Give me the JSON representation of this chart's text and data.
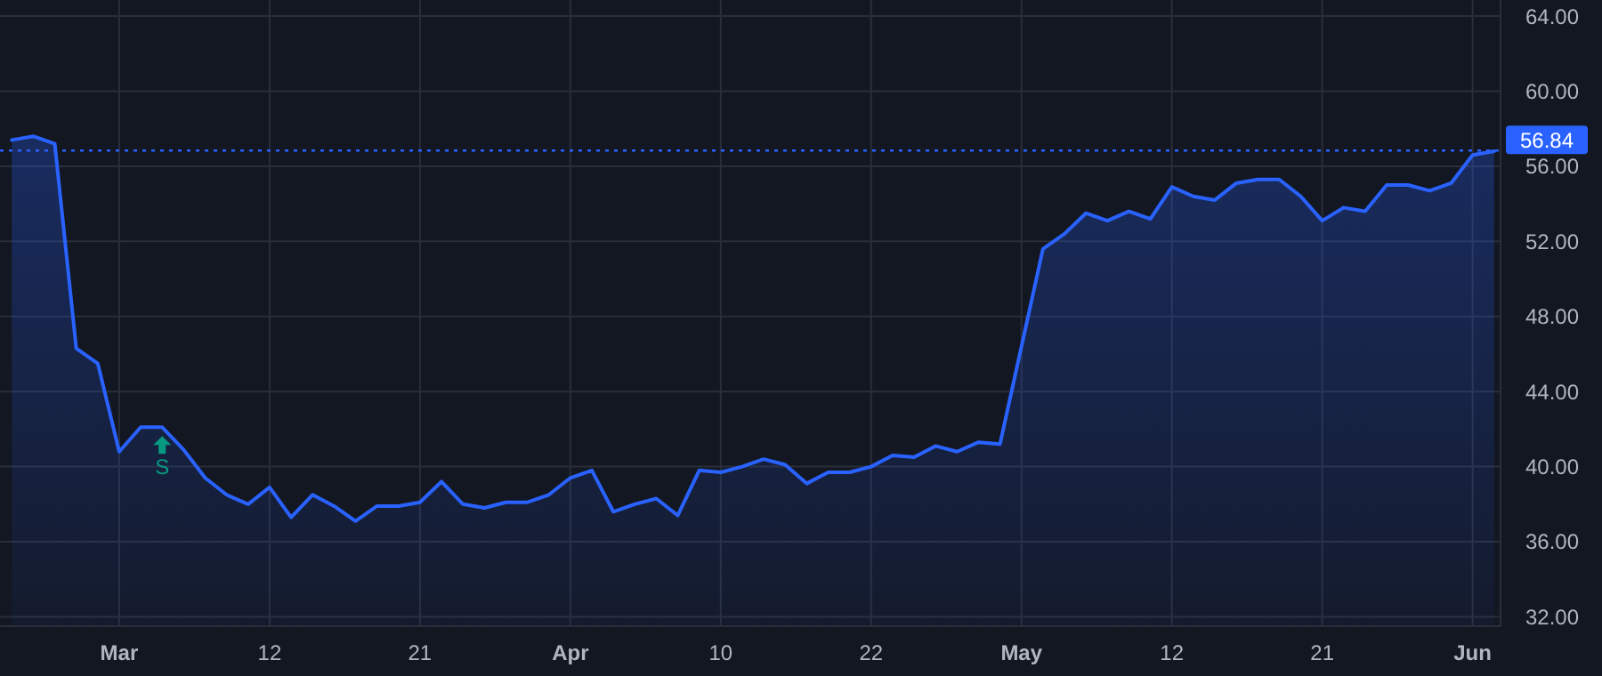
{
  "chart_data": {
    "type": "area",
    "categories": [
      null,
      null,
      null,
      null,
      null,
      "Mar",
      null,
      null,
      null,
      null,
      null,
      null,
      "12",
      null,
      null,
      null,
      null,
      null,
      null,
      "21",
      null,
      null,
      null,
      null,
      null,
      null,
      "Apr",
      null,
      null,
      null,
      null,
      null,
      null,
      "10",
      null,
      null,
      null,
      null,
      null,
      null,
      "22",
      null,
      null,
      null,
      null,
      null,
      null,
      "May",
      null,
      null,
      null,
      null,
      null,
      null,
      "12",
      null,
      null,
      null,
      null,
      null,
      null,
      "21",
      null,
      null,
      null,
      null,
      null,
      null,
      "Jun",
      null
    ],
    "series": [
      {
        "color": "#2962ff",
        "values": [
          57.4,
          57.6,
          57.2,
          46.3,
          45.5,
          40.8,
          42.1,
          42.1,
          40.9,
          39.4,
          38.5,
          38.0,
          38.9,
          37.3,
          38.5,
          37.9,
          37.1,
          37.9,
          37.9,
          38.1,
          39.2,
          38.0,
          37.8,
          38.1,
          38.1,
          38.5,
          39.4,
          39.8,
          37.6,
          38.0,
          38.3,
          37.4,
          39.8,
          39.7,
          40.0,
          40.4,
          40.1,
          39.1,
          39.7,
          39.7,
          40.0,
          40.6,
          40.5,
          41.1,
          40.8,
          41.3,
          41.2,
          46.4,
          51.6,
          52.4,
          53.5,
          53.1,
          53.6,
          53.2,
          54.9,
          54.4,
          54.2,
          55.1,
          55.3,
          55.3,
          54.4,
          53.1,
          53.8,
          53.6,
          55.0,
          55.0,
          54.7,
          55.1,
          56.6,
          56.8
        ]
      }
    ],
    "ylim": [
      31.5,
      64.1
    ],
    "yticks": [
      {
        "value": 32,
        "label": "32.00"
      },
      {
        "value": 36,
        "label": "36.00"
      },
      {
        "value": 40,
        "label": "40.00"
      },
      {
        "value": 44,
        "label": "44.00"
      },
      {
        "value": 48,
        "label": "48.00"
      },
      {
        "value": 52,
        "label": "52.00"
      },
      {
        "value": 56,
        "label": "56.00"
      },
      {
        "value": 60,
        "label": "60.00"
      },
      {
        "value": 64,
        "label": "64.00"
      }
    ],
    "ref_lines": [
      {
        "axis": "y",
        "value": 56.84,
        "label": "56.84",
        "color": "#2962ff",
        "line_style": "dotted"
      }
    ],
    "annotations": [
      "S"
    ],
    "grid": true,
    "marker": "none",
    "line_style": "solid"
  }
}
